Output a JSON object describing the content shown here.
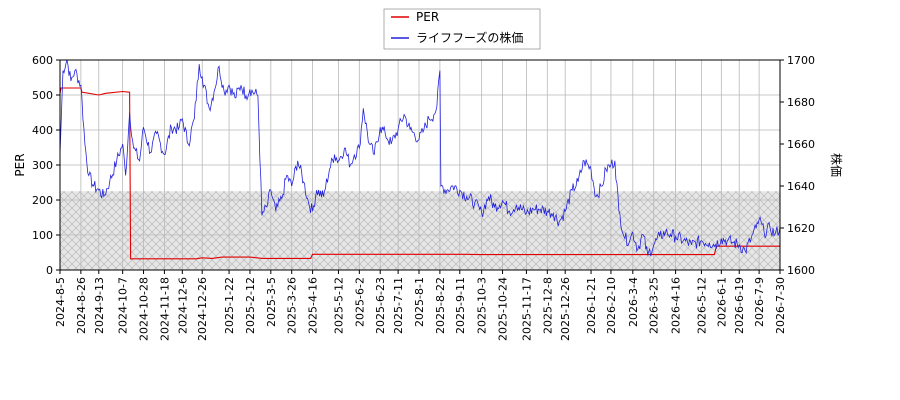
{
  "chart_data": {
    "type": "line",
    "title": "",
    "ylabel_left": "PER",
    "ylabel_right": "株価",
    "legend": {
      "placement": "top-center",
      "entries": [
        {
          "label": "PER",
          "color": "#e00000"
        },
        {
          "label": "ライフフーズの株価",
          "color": "#2222dd"
        }
      ]
    },
    "grid": true,
    "shaded_band_left": [
      0,
      225
    ],
    "ylim_left": [
      0,
      600
    ],
    "ylim_right": [
      1600,
      1700
    ],
    "yticks_left": [
      "0",
      "100",
      "200",
      "300",
      "400",
      "500",
      "600"
    ],
    "yticks_right": [
      "1600",
      "1620",
      "1640",
      "1660",
      "1680",
      "1700"
    ],
    "xlim": [
      "2024-08-05",
      "2026-07-30"
    ],
    "xticks": [
      "2024-8-5",
      "2024-8-26",
      "2024-9-13",
      "2024-10-7",
      "2024-10-28",
      "2024-11-18",
      "2024-12-6",
      "2024-12-26",
      "2025-1-22",
      "2025-2-12",
      "2025-3-5",
      "2025-3-26",
      "2025-4-16",
      "2025-5-12",
      "2025-6-2",
      "2025-6-23",
      "2025-7-11",
      "2025-8-1",
      "2025-8-22",
      "2025-9-11",
      "2025-10-3",
      "2025-10-24",
      "2025-11-17",
      "2025-12-8",
      "2025-12-26",
      "2026-1-21",
      "2026-2-10",
      "2026-3-4",
      "2026-3-25",
      "2026-4-16",
      "2026-5-12",
      "2026-6-1",
      "2026-6-19",
      "2026-7-9",
      "2026-7-30"
    ],
    "series": [
      {
        "name": "PER",
        "axis": "left",
        "color": "#e00000",
        "points": [
          [
            "2024-08-05",
            505
          ],
          [
            "2024-08-06",
            520
          ],
          [
            "2024-08-26",
            520
          ],
          [
            "2024-08-27",
            508
          ],
          [
            "2024-09-13",
            500
          ],
          [
            "2024-09-20",
            505
          ],
          [
            "2024-10-07",
            510
          ],
          [
            "2024-10-14",
            508
          ],
          [
            "2024-10-15",
            32
          ],
          [
            "2024-12-20",
            32
          ],
          [
            "2024-12-26",
            35
          ],
          [
            "2025-01-05",
            33
          ],
          [
            "2025-01-15",
            37
          ],
          [
            "2025-02-12",
            37
          ],
          [
            "2025-02-25",
            33
          ],
          [
            "2025-04-14",
            33
          ],
          [
            "2025-04-16",
            45
          ],
          [
            "2025-09-15",
            45
          ],
          [
            "2025-10-01",
            44
          ],
          [
            "2026-05-25",
            44
          ],
          [
            "2026-05-27",
            68
          ],
          [
            "2026-07-30",
            68
          ]
        ]
      },
      {
        "name": "ライフフーズの株価",
        "axis": "right",
        "color": "#2222dd",
        "points": [
          [
            "2024-08-05",
            1655
          ],
          [
            "2024-08-08",
            1695
          ],
          [
            "2024-08-12",
            1700
          ],
          [
            "2024-08-16",
            1690
          ],
          [
            "2024-08-20",
            1695
          ],
          [
            "2024-08-26",
            1688
          ],
          [
            "2024-08-30",
            1660
          ],
          [
            "2024-09-03",
            1645
          ],
          [
            "2024-09-08",
            1640
          ],
          [
            "2024-09-13",
            1638
          ],
          [
            "2024-09-18",
            1635
          ],
          [
            "2024-09-24",
            1642
          ],
          [
            "2024-10-01",
            1652
          ],
          [
            "2024-10-07",
            1660
          ],
          [
            "2024-10-10",
            1645
          ],
          [
            "2024-10-14",
            1675
          ],
          [
            "2024-10-18",
            1658
          ],
          [
            "2024-10-24",
            1652
          ],
          [
            "2024-10-28",
            1668
          ],
          [
            "2024-11-04",
            1656
          ],
          [
            "2024-11-10",
            1665
          ],
          [
            "2024-11-18",
            1655
          ],
          [
            "2024-11-25",
            1668
          ],
          [
            "2024-12-02",
            1667
          ],
          [
            "2024-12-06",
            1672
          ],
          [
            "2024-12-12",
            1660
          ],
          [
            "2024-12-18",
            1672
          ],
          [
            "2024-12-23",
            1698
          ],
          [
            "2024-12-26",
            1692
          ],
          [
            "2025-01-02",
            1677
          ],
          [
            "2025-01-07",
            1685
          ],
          [
            "2025-01-12",
            1697
          ],
          [
            "2025-01-17",
            1685
          ],
          [
            "2025-01-22",
            1688
          ],
          [
            "2025-01-28",
            1682
          ],
          [
            "2025-02-03",
            1688
          ],
          [
            "2025-02-08",
            1683
          ],
          [
            "2025-02-12",
            1686
          ],
          [
            "2025-02-20",
            1683
          ],
          [
            "2025-02-24",
            1626
          ],
          [
            "2025-03-01",
            1630
          ],
          [
            "2025-03-05",
            1638
          ],
          [
            "2025-03-10",
            1628
          ],
          [
            "2025-03-16",
            1634
          ],
          [
            "2025-03-21",
            1645
          ],
          [
            "2025-03-26",
            1640
          ],
          [
            "2025-04-01",
            1652
          ],
          [
            "2025-04-07",
            1642
          ],
          [
            "2025-04-12",
            1632
          ],
          [
            "2025-04-16",
            1628
          ],
          [
            "2025-04-20",
            1638
          ],
          [
            "2025-04-27",
            1635
          ],
          [
            "2025-05-03",
            1648
          ],
          [
            "2025-05-08",
            1655
          ],
          [
            "2025-05-12",
            1652
          ],
          [
            "2025-05-18",
            1658
          ],
          [
            "2025-05-24",
            1650
          ],
          [
            "2025-05-28",
            1655
          ],
          [
            "2025-06-02",
            1658
          ],
          [
            "2025-06-06",
            1677
          ],
          [
            "2025-06-12",
            1660
          ],
          [
            "2025-06-17",
            1655
          ],
          [
            "2025-06-23",
            1668
          ],
          [
            "2025-06-28",
            1665
          ],
          [
            "2025-07-04",
            1660
          ],
          [
            "2025-07-11",
            1667
          ],
          [
            "2025-07-17",
            1674
          ],
          [
            "2025-07-23",
            1667
          ],
          [
            "2025-08-01",
            1662
          ],
          [
            "2025-08-06",
            1667
          ],
          [
            "2025-08-11",
            1672
          ],
          [
            "2025-08-16",
            1674
          ],
          [
            "2025-08-19",
            1678
          ],
          [
            "2025-08-22",
            1695
          ],
          [
            "2025-08-23",
            1640
          ],
          [
            "2025-08-29",
            1638
          ],
          [
            "2025-09-04",
            1640
          ],
          [
            "2025-09-11",
            1638
          ],
          [
            "2025-09-18",
            1635
          ],
          [
            "2025-09-26",
            1632
          ],
          [
            "2025-10-03",
            1627
          ],
          [
            "2025-10-10",
            1635
          ],
          [
            "2025-10-16",
            1630
          ],
          [
            "2025-10-24",
            1633
          ],
          [
            "2025-10-31",
            1628
          ],
          [
            "2025-11-07",
            1631
          ],
          [
            "2025-11-17",
            1627
          ],
          [
            "2025-11-24",
            1629
          ],
          [
            "2025-12-01",
            1629
          ],
          [
            "2025-12-08",
            1628
          ],
          [
            "2025-12-14",
            1627
          ],
          [
            "2025-12-20",
            1623
          ],
          [
            "2025-12-26",
            1628
          ],
          [
            "2026-01-02",
            1638
          ],
          [
            "2026-01-08",
            1642
          ],
          [
            "2026-01-14",
            1652
          ],
          [
            "2026-01-21",
            1648
          ],
          [
            "2026-01-26",
            1635
          ],
          [
            "2026-02-01",
            1640
          ],
          [
            "2026-02-05",
            1648
          ],
          [
            "2026-02-10",
            1650
          ],
          [
            "2026-02-14",
            1652
          ],
          [
            "2026-02-18",
            1628
          ],
          [
            "2026-02-24",
            1615
          ],
          [
            "2026-03-01",
            1614
          ],
          [
            "2026-03-04",
            1618
          ],
          [
            "2026-03-09",
            1610
          ],
          [
            "2026-03-14",
            1617
          ],
          [
            "2026-03-19",
            1607
          ],
          [
            "2026-03-25",
            1612
          ],
          [
            "2026-03-31",
            1616
          ],
          [
            "2026-04-06",
            1618
          ],
          [
            "2026-04-11",
            1617
          ],
          [
            "2026-04-16",
            1616
          ],
          [
            "2026-04-24",
            1614
          ],
          [
            "2026-05-02",
            1612
          ],
          [
            "2026-05-12",
            1614
          ],
          [
            "2026-05-20",
            1613
          ],
          [
            "2026-05-26",
            1612
          ],
          [
            "2026-06-01",
            1615
          ],
          [
            "2026-06-07",
            1614
          ],
          [
            "2026-06-13",
            1613
          ],
          [
            "2026-06-19",
            1612
          ],
          [
            "2026-06-25",
            1609
          ],
          [
            "2026-07-01",
            1615
          ],
          [
            "2026-07-06",
            1620
          ],
          [
            "2026-07-09",
            1624
          ],
          [
            "2026-07-14",
            1618
          ],
          [
            "2026-07-20",
            1620
          ],
          [
            "2026-07-25",
            1617
          ],
          [
            "2026-07-30",
            1620
          ]
        ]
      }
    ]
  }
}
